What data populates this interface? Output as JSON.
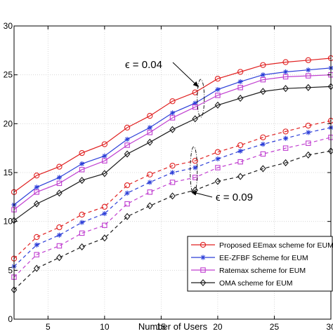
{
  "chart_data": {
    "type": "line",
    "xlabel": "Number of Users",
    "ylabel": "",
    "xlim": [
      2,
      30
    ],
    "ylim": [
      0,
      30
    ],
    "x_ticks": [
      5,
      10,
      15,
      20,
      25,
      30
    ],
    "x_tick_labels": [
      "5",
      "10",
      "15",
      "20",
      "25",
      "30"
    ],
    "y_ticks": [
      0,
      5,
      10,
      15,
      20,
      25,
      30
    ],
    "y_tick_labels": [
      "0",
      "5",
      "10",
      "15",
      "20",
      "25",
      "30"
    ],
    "grid": true,
    "legend_position": "bottom-right",
    "x": [
      2,
      4,
      6,
      8,
      10,
      12,
      14,
      16,
      18,
      20,
      22,
      24,
      26,
      28,
      30
    ],
    "annotations": [
      {
        "text": "ϵ = 0.04",
        "target_x": 18.5,
        "target_y": 22.6
      },
      {
        "text": "ϵ = 0.09",
        "target_x": 18.5,
        "target_y": 15.2
      }
    ],
    "series": [
      {
        "name": "Proposed EEmax scheme for EUM",
        "color": "#e02020",
        "marker": "circle",
        "dash": "solid",
        "group": "ϵ = 0.04",
        "values": [
          13.0,
          14.7,
          15.6,
          17.0,
          17.9,
          19.6,
          20.8,
          22.3,
          23.2,
          24.6,
          25.3,
          26.0,
          26.3,
          26.5,
          26.7
        ]
      },
      {
        "name": "EE-ZFBF Scheme for EUM",
        "color": "#2c3ed8",
        "marker": "star",
        "dash": "solid",
        "group": "ϵ = 0.04",
        "values": [
          11.7,
          13.5,
          14.5,
          15.9,
          16.7,
          18.4,
          19.6,
          21.1,
          22.1,
          23.5,
          24.3,
          25.0,
          25.3,
          25.5,
          25.7
        ]
      },
      {
        "name": "Ratemax scheme for EUM",
        "color": "#c03fd0",
        "marker": "square",
        "dash": "solid",
        "group": "ϵ = 0.04",
        "values": [
          11.2,
          13.0,
          13.9,
          15.3,
          16.2,
          17.8,
          19.1,
          20.6,
          21.7,
          22.9,
          23.7,
          24.5,
          24.8,
          24.9,
          25.0
        ]
      },
      {
        "name": "OMA scheme for EUM",
        "color": "#1a1a1a",
        "marker": "diamond",
        "dash": "solid",
        "group": "ϵ = 0.04",
        "values": [
          10.1,
          11.8,
          12.9,
          14.2,
          14.9,
          16.9,
          18.1,
          19.4,
          20.5,
          21.9,
          22.6,
          23.3,
          23.6,
          23.7,
          23.8
        ]
      },
      {
        "name": "Proposed EEmax scheme for EUM",
        "color": "#e02020",
        "marker": "circle",
        "dash": "dashed",
        "group": "ϵ = 0.09",
        "values": [
          6.2,
          8.4,
          9.4,
          10.7,
          11.5,
          13.7,
          14.8,
          15.7,
          16.2,
          17.1,
          17.8,
          18.6,
          19.2,
          19.8,
          20.3
        ]
      },
      {
        "name": "EE-ZFBF Scheme for EUM",
        "color": "#2c3ed8",
        "marker": "star",
        "dash": "dashed",
        "group": "ϵ = 0.09",
        "values": [
          5.4,
          7.6,
          8.6,
          9.9,
          10.8,
          12.9,
          14.0,
          15.0,
          15.5,
          16.4,
          17.2,
          17.9,
          18.5,
          19.1,
          19.6
        ]
      },
      {
        "name": "Ratemax scheme for EUM",
        "color": "#c03fd0",
        "marker": "square",
        "dash": "dashed",
        "group": "ϵ = 0.09",
        "values": [
          4.3,
          6.6,
          7.5,
          8.8,
          9.6,
          11.8,
          13.0,
          14.0,
          14.5,
          15.5,
          16.1,
          16.9,
          17.5,
          18.0,
          18.6
        ]
      },
      {
        "name": "OMA scheme for EUM",
        "color": "#1a1a1a",
        "marker": "diamond",
        "dash": "dashed",
        "group": "ϵ = 0.09",
        "values": [
          3.0,
          5.2,
          6.3,
          7.4,
          8.3,
          10.5,
          11.6,
          12.6,
          13.2,
          14.1,
          14.6,
          15.4,
          16.0,
          16.8,
          17.2
        ]
      }
    ],
    "legend": [
      {
        "label": "Proposed EEmax scheme for EUM",
        "color": "#e02020",
        "marker": "circle"
      },
      {
        "label": "EE-ZFBF Scheme for EUM",
        "color": "#2c3ed8",
        "marker": "star"
      },
      {
        "label": "Ratemax scheme for EUM",
        "color": "#c03fd0",
        "marker": "square"
      },
      {
        "label": "OMA scheme for EUM",
        "color": "#1a1a1a",
        "marker": "diamond"
      }
    ]
  }
}
